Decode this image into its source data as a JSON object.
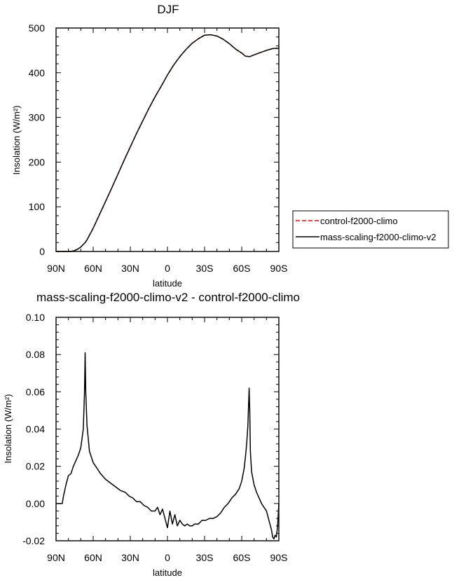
{
  "chart_data": [
    {
      "type": "line",
      "title": "DJF",
      "xlabel": "latitude",
      "ylabel": "Insolation (W/m²)",
      "xlim": [
        -90,
        90
      ],
      "ylim": [
        0,
        500
      ],
      "x_ticks": [
        -90,
        -60,
        -30,
        0,
        30,
        60,
        90
      ],
      "x_tick_labels": [
        "90N",
        "60N",
        "30N",
        "0",
        "30S",
        "60S",
        "90S"
      ],
      "y_ticks": [
        0,
        100,
        200,
        300,
        400,
        500
      ],
      "y_tick_labels": [
        "0",
        "100",
        "200",
        "300",
        "400",
        "500"
      ],
      "legend_placement": "right",
      "x": [
        -90,
        -85,
        -80,
        -78,
        -75,
        -72,
        -70,
        -66.5,
        -65,
        -60,
        -55,
        -50,
        -45,
        -40,
        -35,
        -30,
        -25,
        -20,
        -15,
        -10,
        -5,
        0,
        5,
        10,
        15,
        20,
        25,
        30,
        35,
        40,
        45,
        50,
        55,
        60,
        63,
        66.5,
        70,
        75,
        80,
        85,
        90
      ],
      "series": [
        {
          "name": "control-f2000-climo",
          "color": "#ff0000",
          "dash": "dashed",
          "values": [
            0,
            0,
            0,
            0,
            2,
            6,
            10,
            20,
            26,
            52,
            82,
            112,
            142,
            173,
            204,
            234,
            264,
            292,
            320,
            346,
            370,
            395,
            417,
            436,
            452,
            466,
            476,
            484,
            485,
            482,
            475,
            465,
            453,
            444,
            437,
            436,
            440,
            445,
            450,
            454,
            455
          ]
        },
        {
          "name": "mass-scaling-f2000-climo-v2",
          "color": "#000000",
          "dash": "solid",
          "values": [
            0,
            0,
            0,
            0,
            2,
            6,
            10,
            20,
            26,
            52,
            82,
            112,
            142,
            173,
            204,
            234,
            264,
            292,
            320,
            346,
            370,
            395,
            417,
            436,
            452,
            466,
            476,
            484,
            485,
            482,
            475,
            465,
            453,
            444,
            437,
            436,
            440,
            445,
            450,
            454,
            455
          ]
        }
      ]
    },
    {
      "type": "line",
      "title": "mass-scaling-f2000-climo-v2 - control-f2000-climo",
      "xlabel": "latitude",
      "ylabel": "Insolation (W/m²)",
      "xlim": [
        -90,
        90
      ],
      "ylim": [
        -0.02,
        0.1
      ],
      "x_ticks": [
        -90,
        -60,
        -30,
        0,
        30,
        60,
        90
      ],
      "x_tick_labels": [
        "90N",
        "60N",
        "30N",
        "0",
        "30S",
        "60S",
        "90S"
      ],
      "y_ticks": [
        -0.02,
        0,
        0.02,
        0.04,
        0.06,
        0.08,
        0.1
      ],
      "y_tick_labels": [
        "-0.02",
        "0.00",
        "0.02",
        "0.04",
        "0.06",
        "0.08",
        "0.10"
      ],
      "series": [
        {
          "name": "",
          "color": "#000000",
          "dash": "solid",
          "x": [
            -90,
            -85,
            -84,
            -82,
            -80,
            -78,
            -76,
            -74,
            -72,
            -70,
            -68,
            -67,
            -66.5,
            -66,
            -65,
            -63,
            -60,
            -57,
            -54,
            -50,
            -46,
            -42,
            -38,
            -34,
            -31,
            -28,
            -25,
            -22,
            -19,
            -16,
            -13,
            -10,
            -8,
            -6,
            -4,
            -2,
            0,
            2,
            4,
            6,
            8,
            10,
            12,
            14,
            16,
            18,
            20,
            22,
            25,
            28,
            31,
            34,
            37,
            40,
            43,
            46,
            49,
            52,
            55,
            58,
            60,
            62,
            63,
            64,
            65,
            65.5,
            66,
            66.5,
            67,
            68,
            70,
            72,
            74,
            76,
            78,
            80,
            82,
            84,
            85,
            86,
            87,
            88,
            89,
            90
          ],
          "values": [
            0,
            0,
            0.004,
            0.01,
            0.015,
            0.016,
            0.02,
            0.023,
            0.026,
            0.03,
            0.04,
            0.06,
            0.081,
            0.06,
            0.042,
            0.028,
            0.022,
            0.019,
            0.016,
            0.013,
            0.011,
            0.009,
            0.007,
            0.006,
            0.004,
            0.003,
            0.001,
            0.001,
            -0.001,
            -0.002,
            -0.004,
            -0.004,
            -0.002,
            -0.006,
            -0.003,
            -0.008,
            -0.013,
            -0.004,
            -0.011,
            -0.006,
            -0.012,
            -0.009,
            -0.011,
            -0.012,
            -0.011,
            -0.012,
            -0.012,
            -0.011,
            -0.011,
            -0.009,
            -0.009,
            -0.008,
            -0.008,
            -0.007,
            -0.005,
            -0.002,
            0,
            0.003,
            0.005,
            0.008,
            0.012,
            0.019,
            0.025,
            0.032,
            0.042,
            0.052,
            0.062,
            0.05,
            0.028,
            0.017,
            0.01,
            0.006,
            0.003,
            0,
            -0.002,
            -0.004,
            -0.009,
            -0.014,
            -0.018,
            -0.019,
            -0.017,
            -0.018,
            -0.012,
            0
          ]
        }
      ]
    }
  ]
}
